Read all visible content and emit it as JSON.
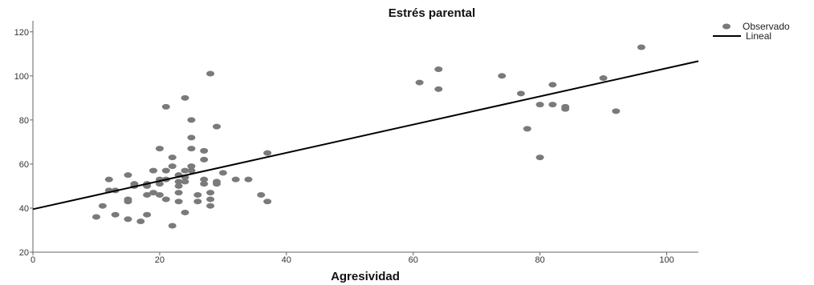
{
  "chart_data": {
    "type": "scatter",
    "title": "Estrés parental",
    "xlabel": "Agresividad",
    "ylabel": "",
    "xlim": [
      0,
      105
    ],
    "ylim": [
      20,
      125
    ],
    "x_ticks": [
      0,
      20,
      40,
      60,
      80,
      100
    ],
    "y_ticks": [
      20,
      40,
      60,
      80,
      100,
      120
    ],
    "grid": false,
    "legend_position": "top-right",
    "series": [
      {
        "name": "Observado",
        "kind": "scatter",
        "color": "#7a7a7a",
        "points": [
          [
            10,
            36
          ],
          [
            11,
            41
          ],
          [
            12,
            53
          ],
          [
            12,
            48
          ],
          [
            13,
            48
          ],
          [
            13,
            37
          ],
          [
            15,
            55
          ],
          [
            15,
            44
          ],
          [
            15,
            43
          ],
          [
            15,
            35
          ],
          [
            16,
            51
          ],
          [
            16,
            50
          ],
          [
            17,
            34
          ],
          [
            18,
            51
          ],
          [
            18,
            50
          ],
          [
            18,
            46
          ],
          [
            18,
            37
          ],
          [
            19,
            57
          ],
          [
            19,
            47
          ],
          [
            20,
            67
          ],
          [
            20,
            53
          ],
          [
            20,
            51
          ],
          [
            20,
            46
          ],
          [
            21,
            86
          ],
          [
            21,
            57
          ],
          [
            21,
            53
          ],
          [
            21,
            44
          ],
          [
            22,
            63
          ],
          [
            22,
            59
          ],
          [
            22,
            32
          ],
          [
            23,
            55
          ],
          [
            23,
            52
          ],
          [
            23,
            50
          ],
          [
            23,
            47
          ],
          [
            23,
            43
          ],
          [
            24,
            90
          ],
          [
            24,
            57
          ],
          [
            24,
            54
          ],
          [
            24,
            52
          ],
          [
            24,
            38
          ],
          [
            25,
            80
          ],
          [
            25,
            72
          ],
          [
            25,
            67
          ],
          [
            25,
            59
          ],
          [
            25,
            57
          ],
          [
            26,
            46
          ],
          [
            26,
            43
          ],
          [
            27,
            66
          ],
          [
            27,
            62
          ],
          [
            27,
            53
          ],
          [
            27,
            51
          ],
          [
            28,
            101
          ],
          [
            28,
            47
          ],
          [
            28,
            44
          ],
          [
            28,
            41
          ],
          [
            29,
            77
          ],
          [
            29,
            52
          ],
          [
            29,
            51
          ],
          [
            30,
            56
          ],
          [
            32,
            53
          ],
          [
            34,
            53
          ],
          [
            36,
            46
          ],
          [
            37,
            65
          ],
          [
            37,
            43
          ],
          [
            61,
            97
          ],
          [
            64,
            103
          ],
          [
            64,
            94
          ],
          [
            74,
            100
          ],
          [
            77,
            92
          ],
          [
            78,
            76
          ],
          [
            80,
            87
          ],
          [
            80,
            63
          ],
          [
            82,
            96
          ],
          [
            82,
            87
          ],
          [
            84,
            86
          ],
          [
            84,
            85
          ],
          [
            90,
            99
          ],
          [
            92,
            84
          ],
          [
            96,
            113
          ]
        ]
      },
      {
        "name": "Lineal",
        "kind": "line",
        "color": "#000000",
        "intercept": 39.5,
        "slope": 0.64
      }
    ]
  }
}
